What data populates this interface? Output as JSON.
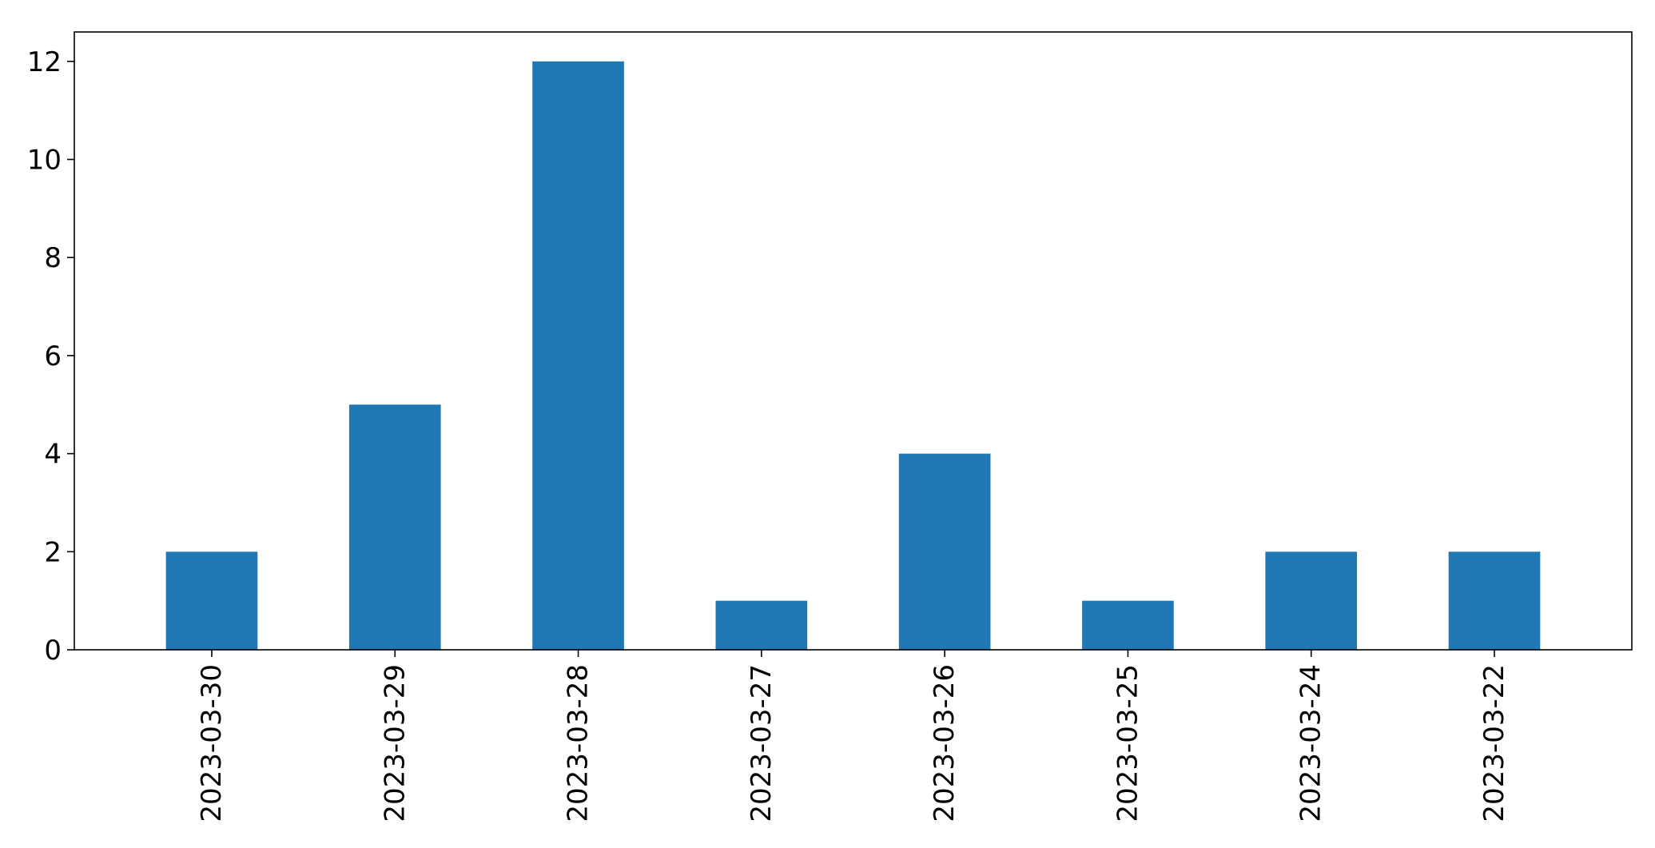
{
  "chart_data": {
    "type": "bar",
    "categories": [
      "2023-03-30",
      "2023-03-29",
      "2023-03-28",
      "2023-03-27",
      "2023-03-26",
      "2023-03-25",
      "2023-03-24",
      "2023-03-22"
    ],
    "values": [
      2,
      5,
      12,
      1,
      4,
      1,
      2,
      2
    ],
    "title": "",
    "xlabel": "",
    "ylabel": "",
    "ylim": [
      0,
      12.6
    ],
    "yticks": [
      0,
      2,
      4,
      6,
      8,
      10,
      12
    ],
    "bar_color": "#1f77b4",
    "axis_color": "#000000",
    "grid": false,
    "legend": false
  }
}
